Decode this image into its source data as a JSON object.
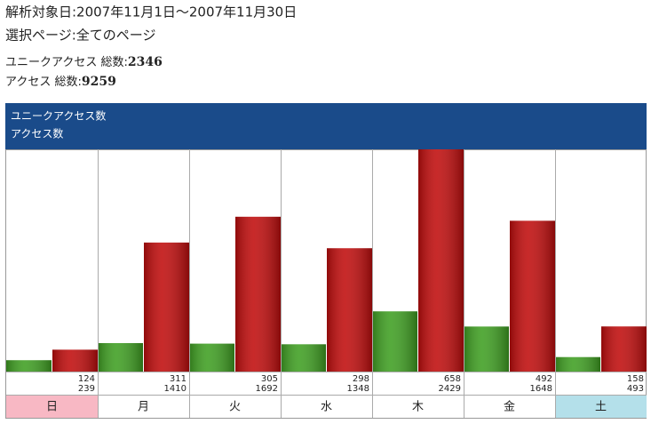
{
  "header": {
    "period": "解析対象日:2007年11月1日～2007年11月30日",
    "page": "選択ページ:全てのページ",
    "totals": [
      {
        "label": "ユニークアクセス 総数:",
        "value": 2346
      },
      {
        "label": "アクセス 総数:",
        "value": 9259
      }
    ]
  },
  "chart_data": {
    "type": "bar",
    "categories": [
      "日",
      "月",
      "火",
      "水",
      "木",
      "金",
      "土"
    ],
    "series": [
      {
        "name": "ユニークアクセス数",
        "color": "#3f9f22",
        "values": [
          124,
          311,
          305,
          298,
          658,
          492,
          158
        ]
      },
      {
        "name": "アクセス数",
        "color": "#c00d0d",
        "values": [
          239,
          1410,
          1692,
          1348,
          2429,
          1648,
          493
        ]
      }
    ],
    "category_styles": [
      {
        "background": "#f8b8c4",
        "color": "#d01010"
      },
      null,
      null,
      null,
      null,
      null,
      {
        "background": "#b4e0ea",
        "color": "#1020d0"
      }
    ]
  }
}
